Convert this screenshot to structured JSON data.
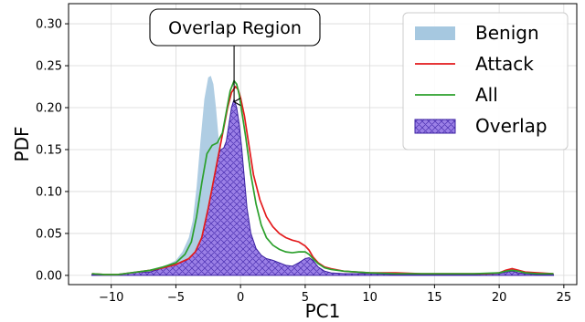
{
  "chart_data": {
    "type": "area",
    "xlabel": "PC1",
    "ylabel": "PDF",
    "xlim": [
      -13.3,
      26.0
    ],
    "ylim": [
      -0.011,
      0.324
    ],
    "xticks": [
      -10,
      -5,
      0,
      5,
      10,
      15,
      20,
      25
    ],
    "xtick_labels": [
      "−10",
      "−5",
      "0",
      "5",
      "10",
      "15",
      "20",
      "25"
    ],
    "yticks": [
      0.0,
      0.05,
      0.1,
      0.15,
      0.2,
      0.25,
      0.3
    ],
    "ytick_labels": [
      "0.00",
      "0.05",
      "0.10",
      "0.15",
      "0.20",
      "0.25",
      "0.30"
    ],
    "grid": true,
    "legend_position": "top-right",
    "series": [
      {
        "name": "Benign",
        "style": "filled",
        "color": "#a6c8e0",
        "x": [
          -11.5,
          -9,
          -7,
          -6,
          -5,
          -4.5,
          -4,
          -3.7,
          -3.4,
          -3.1,
          -2.8,
          -2.5,
          -2.3,
          -2.1,
          -1.9,
          -1.7,
          -1.5,
          -1.3,
          -1.1,
          -0.9,
          -0.7,
          -0.5,
          -0.3,
          -0.1,
          0.1,
          0.3,
          0.5,
          0.8,
          1.2,
          1.6,
          2,
          2.5,
          3,
          3.5,
          4,
          4.5,
          5,
          5.3,
          5.6,
          6,
          6.5,
          7,
          8,
          9,
          10,
          12,
          14,
          16,
          18,
          20,
          20.5,
          21,
          21.5,
          22,
          23,
          24.2
        ],
        "y": [
          0.001,
          0.001,
          0.004,
          0.01,
          0.018,
          0.028,
          0.045,
          0.065,
          0.105,
          0.16,
          0.21,
          0.236,
          0.238,
          0.228,
          0.2,
          0.165,
          0.15,
          0.152,
          0.16,
          0.18,
          0.2,
          0.21,
          0.2,
          0.18,
          0.15,
          0.115,
          0.08,
          0.05,
          0.032,
          0.024,
          0.02,
          0.018,
          0.015,
          0.012,
          0.011,
          0.015,
          0.02,
          0.021,
          0.018,
          0.01,
          0.005,
          0.003,
          0.002,
          0.002,
          0.002,
          0.001,
          0.001,
          0.001,
          0.001,
          0.002,
          0.004,
          0.005,
          0.003,
          0.002,
          0.001,
          0.001
        ]
      },
      {
        "name": "Attack",
        "style": "line",
        "color": "#e31a1c",
        "x": [
          -11.5,
          -10.5,
          -9.5,
          -9,
          -8,
          -7,
          -6,
          -5,
          -4,
          -3.5,
          -3,
          -2.5,
          -2,
          -1.5,
          -1,
          -0.7,
          -0.4,
          -0.2,
          0,
          0.3,
          0.6,
          1,
          1.5,
          2,
          2.5,
          3,
          3.5,
          4,
          4.5,
          5,
          5.3,
          5.6,
          6,
          6.5,
          7,
          8,
          9,
          10,
          12,
          14,
          16,
          18,
          19,
          20,
          20.5,
          21,
          21.5,
          22,
          23,
          24.2
        ],
        "y": [
          0.002,
          0.001,
          0.001,
          0.002,
          0.004,
          0.006,
          0.009,
          0.013,
          0.02,
          0.028,
          0.045,
          0.08,
          0.12,
          0.16,
          0.2,
          0.218,
          0.225,
          0.222,
          0.212,
          0.19,
          0.16,
          0.12,
          0.09,
          0.07,
          0.058,
          0.05,
          0.045,
          0.042,
          0.04,
          0.035,
          0.03,
          0.022,
          0.015,
          0.01,
          0.008,
          0.005,
          0.004,
          0.003,
          0.003,
          0.002,
          0.002,
          0.002,
          0.002,
          0.003,
          0.006,
          0.008,
          0.006,
          0.004,
          0.003,
          0.002
        ]
      },
      {
        "name": "All",
        "style": "line",
        "color": "#2ca02c",
        "x": [
          -11.5,
          -10.5,
          -9.5,
          -9,
          -8,
          -7,
          -6,
          -5,
          -4.3,
          -3.8,
          -3.4,
          -3,
          -2.6,
          -2.2,
          -1.8,
          -1.4,
          -1.1,
          -0.8,
          -0.5,
          -0.3,
          -0.1,
          0.1,
          0.4,
          0.8,
          1.2,
          1.6,
          2,
          2.5,
          3,
          3.5,
          4,
          4.5,
          5,
          5.3,
          5.6,
          6,
          6.5,
          7,
          8,
          9,
          10,
          12,
          14,
          16,
          18,
          20,
          20.5,
          21,
          21.5,
          22,
          23,
          24.2
        ],
        "y": [
          0.002,
          0.001,
          0.001,
          0.002,
          0.004,
          0.006,
          0.01,
          0.015,
          0.025,
          0.04,
          0.07,
          0.11,
          0.145,
          0.155,
          0.158,
          0.17,
          0.195,
          0.22,
          0.232,
          0.228,
          0.215,
          0.195,
          0.165,
          0.12,
          0.085,
          0.06,
          0.045,
          0.036,
          0.031,
          0.028,
          0.027,
          0.028,
          0.028,
          0.025,
          0.02,
          0.014,
          0.009,
          0.007,
          0.005,
          0.004,
          0.003,
          0.002,
          0.002,
          0.002,
          0.002,
          0.003,
          0.005,
          0.006,
          0.005,
          0.003,
          0.002,
          0.002
        ]
      },
      {
        "name": "Overlap",
        "style": "hatched",
        "color": "#9b80e6",
        "edge_color": "#3a1fa0",
        "x": [
          -11.5,
          -9.5,
          -9,
          -8,
          -7,
          -6,
          -5,
          -4.5,
          -4,
          -3.5,
          -3,
          -2.5,
          -2,
          -1.7,
          -1.5,
          -1.3,
          -1.1,
          -0.9,
          -0.7,
          -0.5,
          -0.3,
          -0.1,
          0.1,
          0.3,
          0.5,
          0.8,
          1.2,
          1.6,
          2,
          2.5,
          3,
          3.5,
          4,
          4.5,
          5,
          5.3,
          5.6,
          6,
          6.5,
          7,
          8,
          9,
          10,
          12,
          14,
          16,
          18,
          20,
          20.5,
          21,
          21.5,
          22,
          23,
          24.2
        ],
        "y": [
          0.001,
          0.001,
          0.002,
          0.004,
          0.004,
          0.009,
          0.013,
          0.016,
          0.02,
          0.028,
          0.045,
          0.08,
          0.12,
          0.145,
          0.15,
          0.152,
          0.16,
          0.18,
          0.2,
          0.21,
          0.2,
          0.18,
          0.15,
          0.115,
          0.08,
          0.05,
          0.032,
          0.024,
          0.02,
          0.018,
          0.015,
          0.012,
          0.011,
          0.015,
          0.02,
          0.021,
          0.018,
          0.01,
          0.005,
          0.003,
          0.002,
          0.002,
          0.002,
          0.001,
          0.001,
          0.001,
          0.001,
          0.002,
          0.004,
          0.005,
          0.003,
          0.002,
          0.001,
          0.001
        ]
      }
    ],
    "annotation": {
      "text": "Overlap Region",
      "arrow_to": [
        -0.5,
        0.22
      ],
      "arrow_from_y": 0.3
    }
  }
}
